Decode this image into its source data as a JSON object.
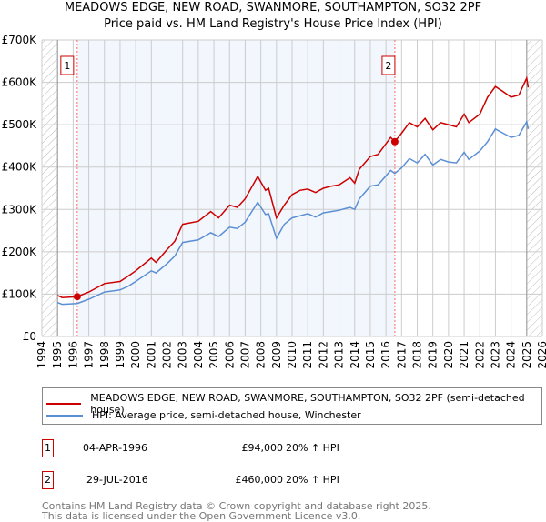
{
  "chart_data": {
    "type": "line",
    "title": "MEADOWS EDGE, NEW ROAD, SWANMORE, SOUTHAMPTON, SO32 2PF",
    "subtitle": "Price paid vs. HM Land Registry's House Price Index (HPI)",
    "xlim": [
      1994,
      2026
    ],
    "ylim": [
      0,
      700000
    ],
    "x_ticks": [
      "1994",
      "1995",
      "1996",
      "1997",
      "1998",
      "1999",
      "2000",
      "2001",
      "2002",
      "2003",
      "2004",
      "2005",
      "2006",
      "2007",
      "2008",
      "2009",
      "2010",
      "2011",
      "2012",
      "2013",
      "2014",
      "2015",
      "2016",
      "2017",
      "2018",
      "2019",
      "2020",
      "2021",
      "2022",
      "2023",
      "2024",
      "2025",
      "2026"
    ],
    "y_ticks": [
      {
        "v": 0,
        "label": "£0"
      },
      {
        "v": 100000,
        "label": "£100K"
      },
      {
        "v": 200000,
        "label": "£200K"
      },
      {
        "v": 300000,
        "label": "£300K"
      },
      {
        "v": 400000,
        "label": "£400K"
      },
      {
        "v": 500000,
        "label": "£500K"
      },
      {
        "v": 600000,
        "label": "£600K"
      },
      {
        "v": 700000,
        "label": "£700K"
      }
    ],
    "grid": true,
    "hatched_ranges": [
      [
        1994,
        1995
      ],
      [
        2025,
        2026
      ]
    ],
    "shaded_range": [
      1996.26,
      2016.57
    ],
    "series": [
      {
        "name": "MEADOWS EDGE, NEW ROAD, SWANMORE, SOUTHAMPTON, SO32 2PF (semi-detached house)",
        "color": "#cc0000",
        "x": [
          1995,
          1995.3,
          1996.26,
          1997,
          1998,
          1999,
          1999.5,
          2000,
          2001,
          2001.3,
          2002,
          2002.5,
          2003,
          2004,
          2004.8,
          2005.3,
          2006,
          2006.5,
          2007,
          2007.8,
          2008.3,
          2008.5,
          2009,
          2009.5,
          2010,
          2010.5,
          2011,
          2011.5,
          2012,
          2012.5,
          2013,
          2013.7,
          2014,
          2014.3,
          2015,
          2015.5,
          2016.3,
          2016.57,
          2017,
          2017.5,
          2018,
          2018.5,
          2019,
          2019.5,
          2020,
          2020.5,
          2021,
          2021.3,
          2022,
          2022.5,
          2023,
          2023.5,
          2024,
          2024.5,
          2025,
          2025.1
        ],
        "values": [
          97000,
          92000,
          94000,
          105000,
          125000,
          130000,
          142000,
          155000,
          185000,
          175000,
          205000,
          225000,
          265000,
          272000,
          295000,
          280000,
          310000,
          305000,
          325000,
          378000,
          345000,
          350000,
          280000,
          310000,
          335000,
          345000,
          348000,
          340000,
          350000,
          355000,
          358000,
          375000,
          362000,
          395000,
          425000,
          430000,
          470000,
          460000,
          480000,
          505000,
          495000,
          515000,
          488000,
          505000,
          500000,
          495000,
          525000,
          505000,
          525000,
          565000,
          590000,
          578000,
          565000,
          570000,
          610000,
          588000
        ]
      },
      {
        "name": "HPI: Average price, semi-detached house, Winchester",
        "color": "#5b8fd4",
        "x": [
          1995,
          1995.3,
          1996.26,
          1997,
          1998,
          1999,
          1999.5,
          2000,
          2001,
          2001.3,
          2002,
          2002.5,
          2003,
          2004,
          2004.8,
          2005.3,
          2006,
          2006.5,
          2007,
          2007.8,
          2008.3,
          2008.5,
          2009,
          2009.5,
          2010,
          2010.5,
          2011,
          2011.5,
          2012,
          2012.5,
          2013,
          2013.7,
          2014,
          2014.3,
          2015,
          2015.5,
          2016.3,
          2016.57,
          2017,
          2017.5,
          2018,
          2018.5,
          2019,
          2019.5,
          2020,
          2020.5,
          2021,
          2021.3,
          2022,
          2022.5,
          2023,
          2023.5,
          2024,
          2024.5,
          2025,
          2025.1
        ],
        "values": [
          80000,
          76000,
          78000,
          88000,
          105000,
          110000,
          118000,
          130000,
          155000,
          150000,
          172000,
          190000,
          222000,
          228000,
          245000,
          236000,
          258000,
          255000,
          270000,
          317000,
          288000,
          290000,
          232000,
          265000,
          280000,
          285000,
          290000,
          282000,
          292000,
          295000,
          298000,
          305000,
          300000,
          325000,
          355000,
          358000,
          392000,
          385000,
          398000,
          420000,
          410000,
          430000,
          405000,
          418000,
          412000,
          410000,
          435000,
          418000,
          438000,
          460000,
          490000,
          480000,
          470000,
          475000,
          507000,
          490000
        ]
      }
    ],
    "sales": [
      {
        "label": "1",
        "x": 1996.26,
        "value": 94000
      },
      {
        "label": "2",
        "x": 2016.57,
        "value": 460000
      }
    ]
  },
  "legend": {
    "property": "MEADOWS EDGE, NEW ROAD, SWANMORE, SOUTHAMPTON, SO32 2PF (semi-detached house)",
    "hpi": "HPI: Average price, semi-detached house, Winchester"
  },
  "sales_table": [
    {
      "num": "1",
      "date": "04-APR-1996",
      "price": "£94,000",
      "hpi": "20% ↑ HPI"
    },
    {
      "num": "2",
      "date": "29-JUL-2016",
      "price": "£460,000",
      "hpi": "20% ↑ HPI"
    }
  ],
  "footer": {
    "line1": "Contains HM Land Registry data © Crown copyright and database right 2025.",
    "line2": "This data is licensed under the Open Government Licence v3.0."
  }
}
